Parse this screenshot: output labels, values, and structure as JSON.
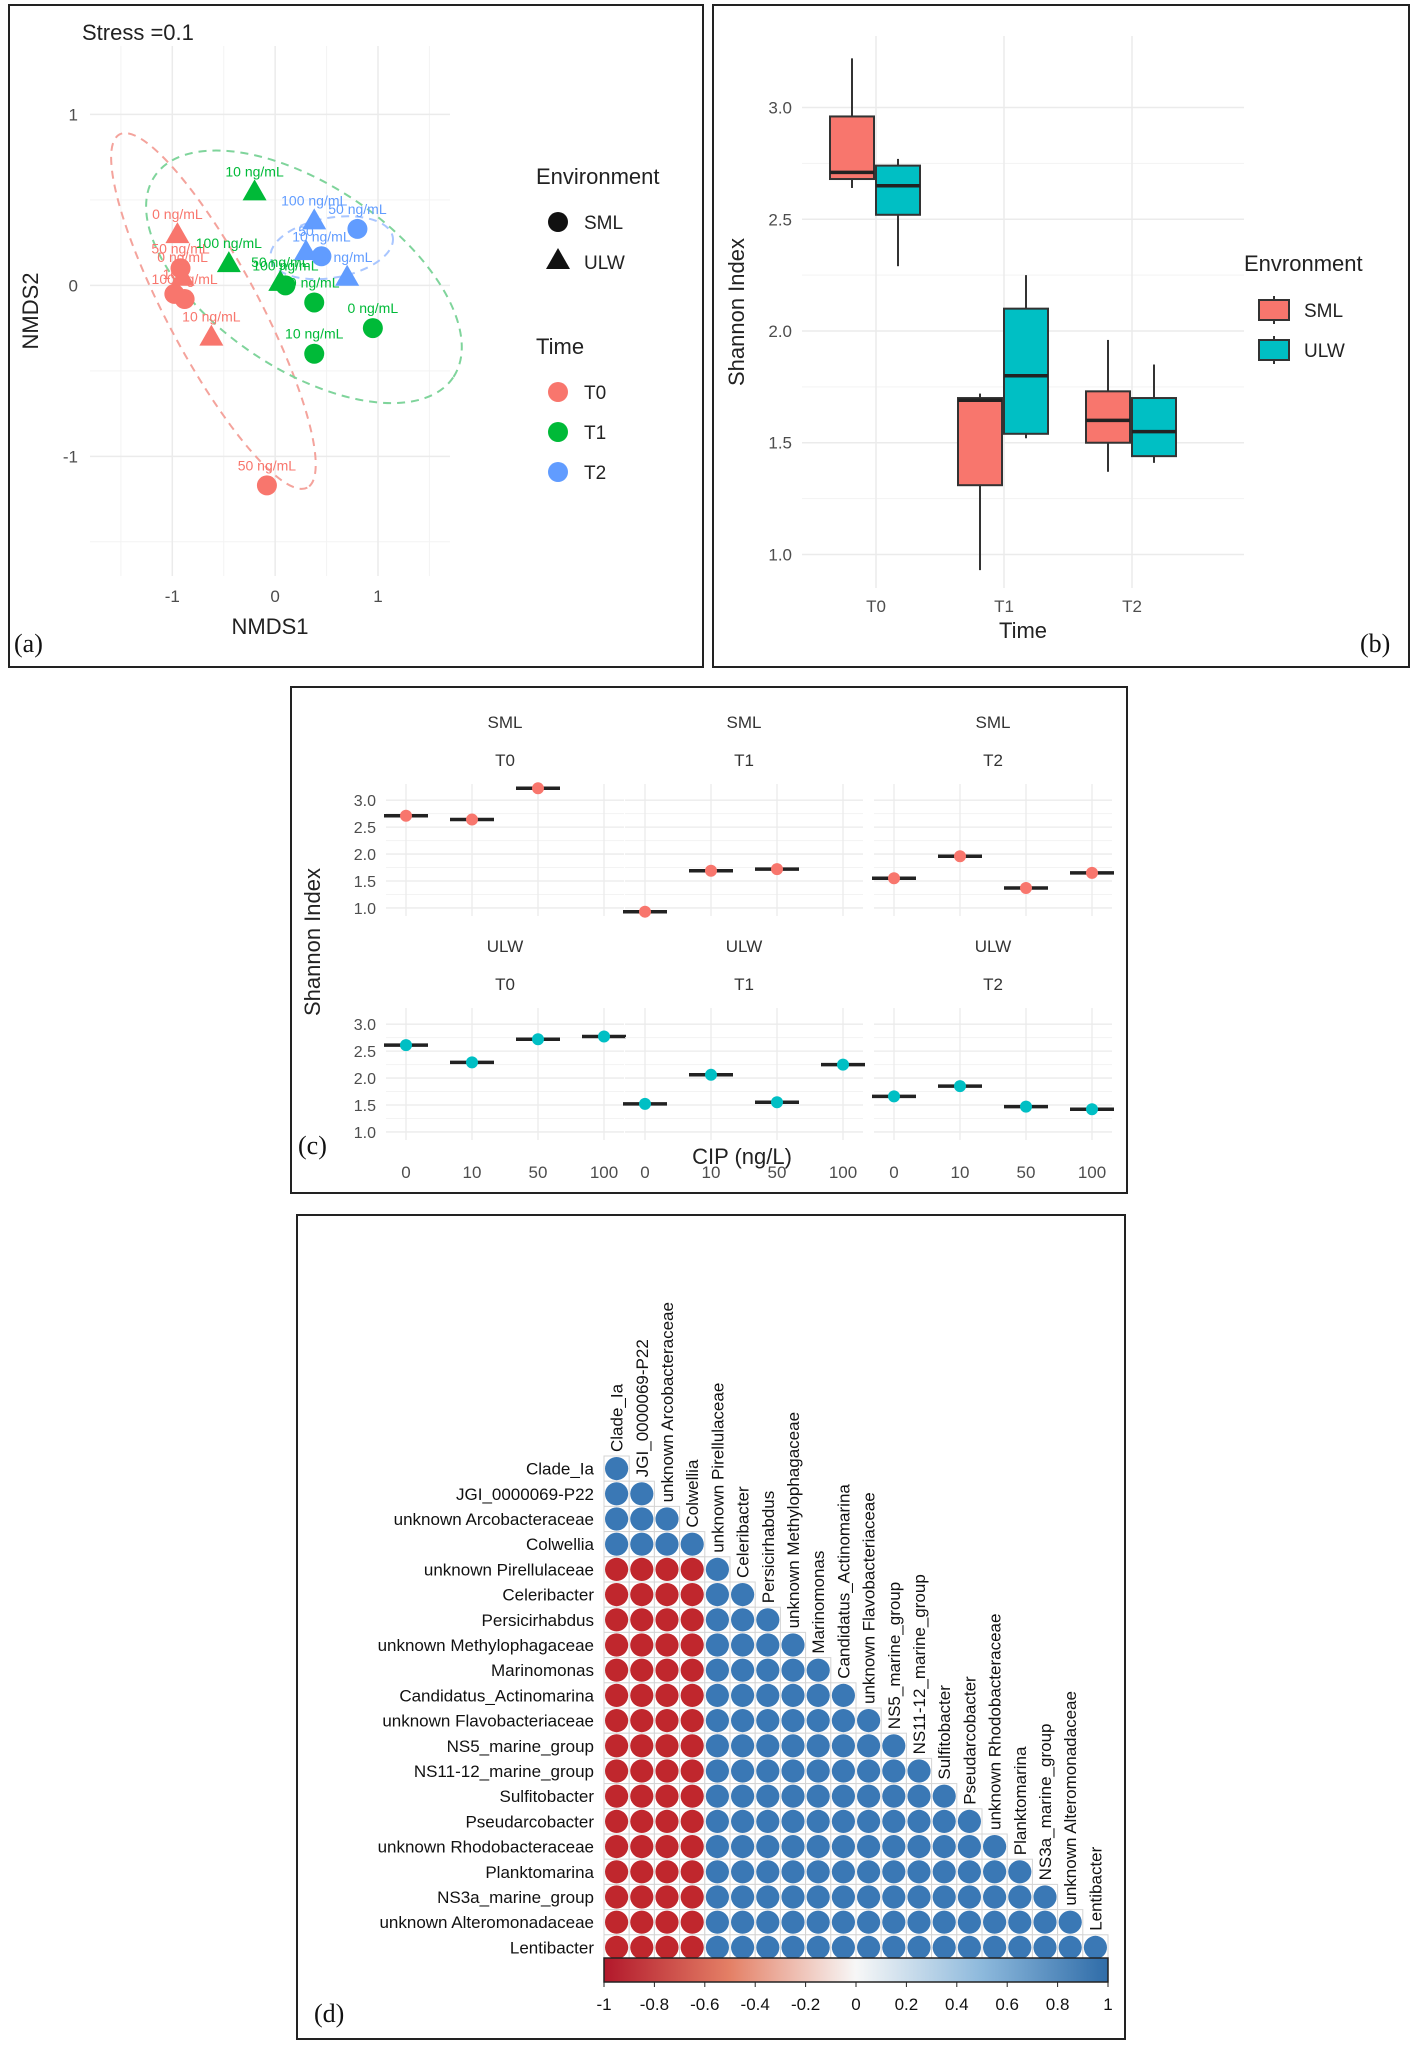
{
  "panels": {
    "a": "(a)",
    "b": "(b)",
    "c": "(c)",
    "d": "(d)"
  },
  "colors": {
    "T0": "#F8766D",
    "T1": "#00BA38",
    "T2": "#619CFF",
    "SML": "#F8766D",
    "ULW": "#00BFC4",
    "neg": "#C0272D",
    "pos": "#3A78B5",
    "grid": "#EBEBEB"
  },
  "chart_data": [
    {
      "id": "a",
      "type": "scatter",
      "title": "Stress =0.1",
      "xlabel": "NMDS1",
      "ylabel": "NMDS2",
      "xlim": [
        -1.8,
        1.7
      ],
      "ylim": [
        -1.7,
        1.4
      ],
      "xticks": [
        -1,
        0,
        1
      ],
      "yticks": [
        1,
        0,
        -1
      ],
      "legend": {
        "shape_title": "Environment",
        "shapes": [
          "SML",
          "ULW"
        ],
        "color_title": "Time",
        "colors": [
          "T0",
          "T1",
          "T2"
        ]
      },
      "points": [
        {
          "x": -0.95,
          "y": 0.3,
          "time": "T0",
          "env": "ULW",
          "label": "0 ng/mL"
        },
        {
          "x": -0.92,
          "y": 0.1,
          "time": "T0",
          "env": "SML",
          "label": "50 ng/mL"
        },
        {
          "x": -0.98,
          "y": -0.05,
          "time": "T0",
          "env": "SML",
          "label": "100"
        },
        {
          "x": -0.88,
          "y": -0.08,
          "time": "T0",
          "env": "SML",
          "label": "100 ng/mL"
        },
        {
          "x": -0.9,
          "y": 0.05,
          "time": "T0",
          "env": "ULW",
          "label": "0 ng/mL"
        },
        {
          "x": -0.62,
          "y": -0.3,
          "time": "T0",
          "env": "ULW",
          "label": "10 ng/mL"
        },
        {
          "x": -0.08,
          "y": -1.17,
          "time": "T0",
          "env": "SML",
          "label": "50 ng/mL"
        },
        {
          "x": -0.2,
          "y": 0.55,
          "time": "T1",
          "env": "ULW",
          "label": "10 ng/mL"
        },
        {
          "x": -0.45,
          "y": 0.13,
          "time": "T1",
          "env": "ULW",
          "label": "100 ng/mL"
        },
        {
          "x": 0.05,
          "y": 0.02,
          "time": "T1",
          "env": "ULW",
          "label": "50 ng/mL"
        },
        {
          "x": 0.1,
          "y": 0.0,
          "time": "T1",
          "env": "SML",
          "label": "100 ng/mL"
        },
        {
          "x": 0.38,
          "y": -0.1,
          "time": "T1",
          "env": "SML",
          "label": "0 ng/mL"
        },
        {
          "x": 0.95,
          "y": -0.25,
          "time": "T1",
          "env": "SML",
          "label": "0 ng/mL"
        },
        {
          "x": 0.38,
          "y": -0.4,
          "time": "T1",
          "env": "SML",
          "label": "10 ng/mL"
        },
        {
          "x": 0.38,
          "y": 0.38,
          "time": "T2",
          "env": "ULW",
          "label": "100 ng/mL"
        },
        {
          "x": 0.8,
          "y": 0.33,
          "time": "T2",
          "env": "SML",
          "label": "50 ng/mL"
        },
        {
          "x": 0.3,
          "y": 0.2,
          "time": "T2",
          "env": "ULW",
          "label": "50"
        },
        {
          "x": 0.45,
          "y": 0.17,
          "time": "T2",
          "env": "SML",
          "label": "10 ng/mL"
        },
        {
          "x": 0.7,
          "y": 0.05,
          "time": "T2",
          "env": "ULW",
          "label": "0 ng/mL"
        }
      ]
    },
    {
      "id": "b",
      "type": "box",
      "xlabel": "Time",
      "ylabel": "Shannon Index",
      "ylim": [
        0.85,
        3.32
      ],
      "yticks": [
        1.0,
        1.5,
        2.0,
        2.5,
        3.0
      ],
      "categories": [
        "T0",
        "T1",
        "T2"
      ],
      "legend": {
        "title": "Envronment",
        "items": [
          "SML",
          "ULW"
        ]
      },
      "series": [
        {
          "name": "SML",
          "boxes": [
            {
              "cat": "T0",
              "min": 2.64,
              "q1": 2.68,
              "med": 2.71,
              "q3": 2.96,
              "max": 3.22
            },
            {
              "cat": "T1",
              "min": 0.93,
              "q1": 1.31,
              "med": 1.69,
              "q3": 1.7,
              "max": 1.72
            },
            {
              "cat": "T2",
              "min": 1.37,
              "q1": 1.5,
              "med": 1.6,
              "q3": 1.73,
              "max": 1.96
            }
          ]
        },
        {
          "name": "ULW",
          "boxes": [
            {
              "cat": "T0",
              "min": 2.29,
              "q1": 2.52,
              "med": 2.65,
              "q3": 2.74,
              "max": 2.77
            },
            {
              "cat": "T1",
              "min": 1.52,
              "q1": 1.54,
              "med": 1.8,
              "q3": 2.1,
              "max": 2.25
            },
            {
              "cat": "T2",
              "min": 1.41,
              "q1": 1.44,
              "med": 1.55,
              "q3": 1.7,
              "max": 1.85
            }
          ]
        }
      ]
    },
    {
      "id": "c",
      "type": "dot-facet",
      "xlabel": "CIP (ng/L)",
      "ylabel": "Shannon Index",
      "ylim": [
        0.85,
        3.3
      ],
      "yticks": [
        1.0,
        1.5,
        2.0,
        2.5,
        3.0
      ],
      "x": [
        "0",
        "10",
        "50",
        "100"
      ],
      "facets": [
        {
          "row": "SML",
          "col": "T0",
          "values": [
            2.71,
            2.64,
            3.22,
            null
          ]
        },
        {
          "row": "SML",
          "col": "T1",
          "values": [
            0.93,
            1.69,
            1.72,
            null
          ]
        },
        {
          "row": "SML",
          "col": "T2",
          "values": [
            1.55,
            1.96,
            1.37,
            1.65
          ]
        },
        {
          "row": "ULW",
          "col": "T0",
          "values": [
            2.61,
            2.29,
            2.72,
            2.77
          ]
        },
        {
          "row": "ULW",
          "col": "T1",
          "values": [
            1.52,
            2.06,
            1.55,
            2.25
          ]
        },
        {
          "row": "ULW",
          "col": "T2",
          "values": [
            1.66,
            1.85,
            1.47,
            1.42
          ]
        }
      ]
    },
    {
      "id": "d",
      "type": "heatmap",
      "taxa": [
        "Clade_Ia",
        "JGI_0000069-P22",
        "unknown  Arcobacteraceae",
        "Colwellia",
        "unknown  Pirellulaceae",
        "Celeribacter",
        "Persicirhabdus",
        "unknown  Methylophagaceae",
        "Marinomonas",
        "Candidatus_Actinomarina",
        "unknown  Flavobacteriaceae",
        "NS5_marine_group",
        "NS11-12_marine_group",
        "Sulfitobacter",
        "Pseudarcobacter",
        "unknown  Rhodobacteraceae",
        "Planktomarina",
        "NS3a_marine_group",
        "unknown  Alteromonadaceae",
        "Lentibacter"
      ],
      "group_a_size": 4,
      "rule": "pairs within the first 4 taxa or within the remaining taxa = +1; pairs across groups = -1",
      "colorbar": {
        "min": -1,
        "max": 1,
        "ticks": [
          "-1",
          "-0.8",
          "-0.6",
          "-0.4",
          "-0.2",
          "0",
          "0.2",
          "0.4",
          "0.6",
          "0.8",
          "1"
        ]
      }
    }
  ]
}
